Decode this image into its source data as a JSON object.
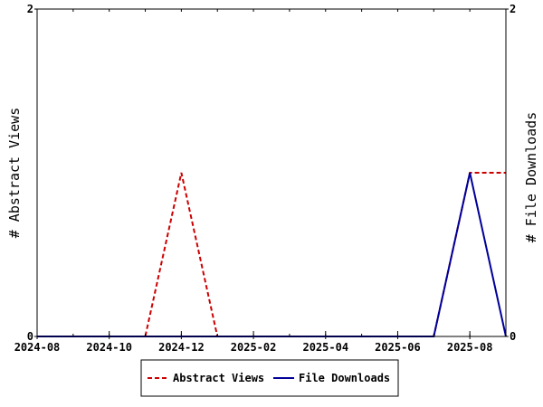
{
  "chart_data": {
    "type": "line",
    "ylabel_left": "# Abstract Views",
    "ylabel_right": "# File Downloads",
    "x_ticks": [
      "2024-08",
      "2024-10",
      "2024-12",
      "2025-02",
      "2025-04",
      "2025-06",
      "2025-08"
    ],
    "x_range": [
      "2024-08",
      "2025-09"
    ],
    "y_left_ticks": [
      "0",
      "2"
    ],
    "y_right_ticks": [
      "0",
      "2"
    ],
    "y_left_range": [
      0,
      2
    ],
    "y_right_range": [
      0,
      2
    ],
    "grid": false,
    "legend_position": "bottom",
    "series": [
      {
        "name": "Abstract Views",
        "axis": "left",
        "color": "#cc0000",
        "style": "dashed",
        "points": [
          {
            "x": "2024-08",
            "y": 0
          },
          {
            "x": "2024-09",
            "y": 0
          },
          {
            "x": "2024-10",
            "y": 0
          },
          {
            "x": "2024-11",
            "y": 0
          },
          {
            "x": "2024-12",
            "y": 1
          },
          {
            "x": "2025-01",
            "y": 0
          },
          {
            "x": "2025-02",
            "y": 0
          },
          {
            "x": "2025-03",
            "y": 0
          },
          {
            "x": "2025-04",
            "y": 0
          },
          {
            "x": "2025-05",
            "y": 0
          },
          {
            "x": "2025-06",
            "y": 0
          },
          {
            "x": "2025-07",
            "y": 0
          },
          {
            "x": "2025-08",
            "y": 1
          },
          {
            "x": "2025-09",
            "y": 1
          }
        ]
      },
      {
        "name": "File Downloads",
        "axis": "right",
        "color": "#000099",
        "style": "solid",
        "points": [
          {
            "x": "2024-08",
            "y": 0
          },
          {
            "x": "2024-09",
            "y": 0
          },
          {
            "x": "2024-10",
            "y": 0
          },
          {
            "x": "2024-11",
            "y": 0
          },
          {
            "x": "2024-12",
            "y": 0
          },
          {
            "x": "2025-01",
            "y": 0
          },
          {
            "x": "2025-02",
            "y": 0
          },
          {
            "x": "2025-03",
            "y": 0
          },
          {
            "x": "2025-04",
            "y": 0
          },
          {
            "x": "2025-05",
            "y": 0
          },
          {
            "x": "2025-06",
            "y": 0
          },
          {
            "x": "2025-07",
            "y": 0
          },
          {
            "x": "2025-08",
            "y": 1
          },
          {
            "x": "2025-09",
            "y": 0
          }
        ]
      }
    ]
  }
}
